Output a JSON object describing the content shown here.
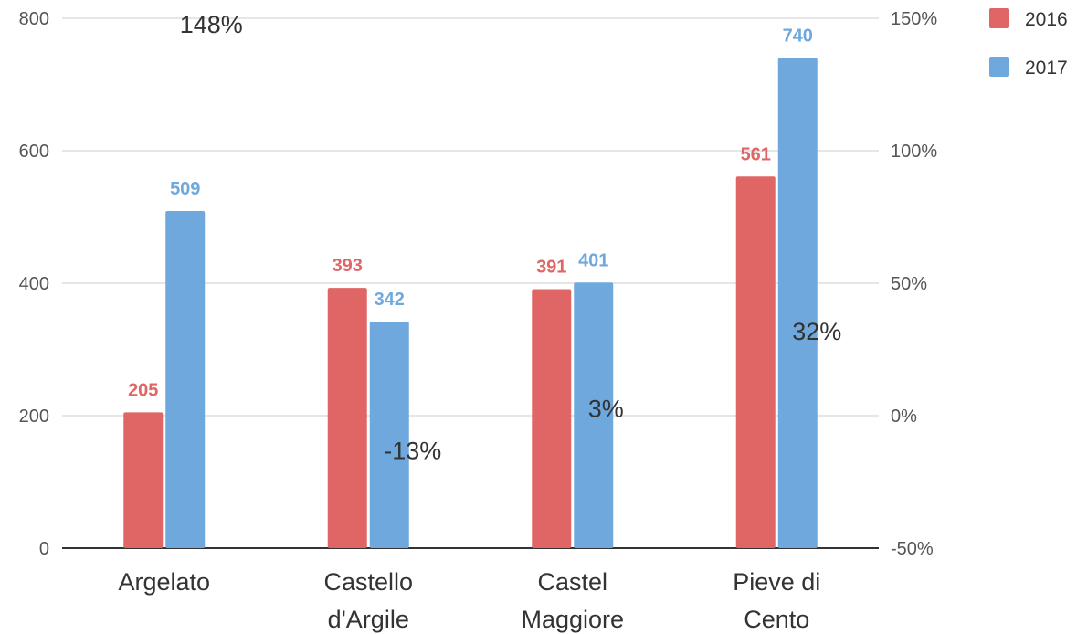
{
  "chart_data": {
    "type": "bar",
    "categories": [
      [
        "Argelato"
      ],
      [
        "Castello",
        "d'Argile"
      ],
      [
        "Castel",
        "Maggiore"
      ],
      [
        "Pieve di",
        "Cento"
      ]
    ],
    "series": [
      {
        "name": "2016",
        "color": "#e06666",
        "values": [
          205,
          393,
          391,
          561
        ]
      },
      {
        "name": "2017",
        "color": "#6fa8dc",
        "values": [
          509,
          342,
          401,
          740
        ]
      }
    ],
    "change_series": {
      "values": [
        148,
        -13,
        3,
        32
      ],
      "labels": [
        "148%",
        "-13%",
        "3%",
        "32%"
      ]
    },
    "y_left": {
      "ylim": [
        0,
        800
      ],
      "ticks": [
        0,
        200,
        400,
        600,
        800
      ]
    },
    "y_right": {
      "ylim": [
        -50,
        150
      ],
      "ticks": [
        "-50%",
        "0%",
        "50%",
        "100%",
        "150%"
      ]
    },
    "legend_position": "top-right",
    "grid": true,
    "title": "",
    "xlabel": "",
    "ylabel": ""
  }
}
